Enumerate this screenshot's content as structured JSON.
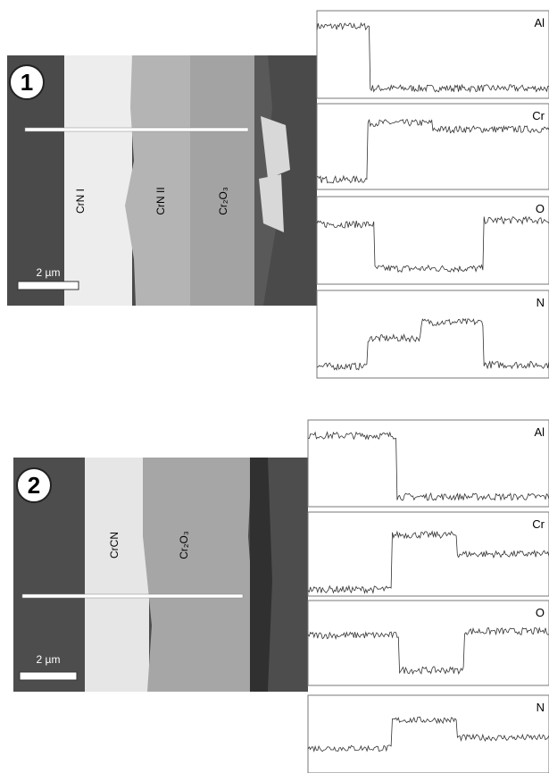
{
  "panel_1": {
    "number": "1",
    "layers": [
      "CrN I",
      "CrN II",
      "Cr₂O₃"
    ],
    "scale_bar": "2 µm",
    "scans": [
      "Al",
      "Cr",
      "O",
      "N"
    ]
  },
  "panel_2": {
    "number": "2",
    "layers": [
      "CrCN",
      "Cr₂O₃"
    ],
    "scale_bar": "2 µm",
    "scans": [
      "Al",
      "Cr",
      "O",
      "N"
    ]
  }
}
